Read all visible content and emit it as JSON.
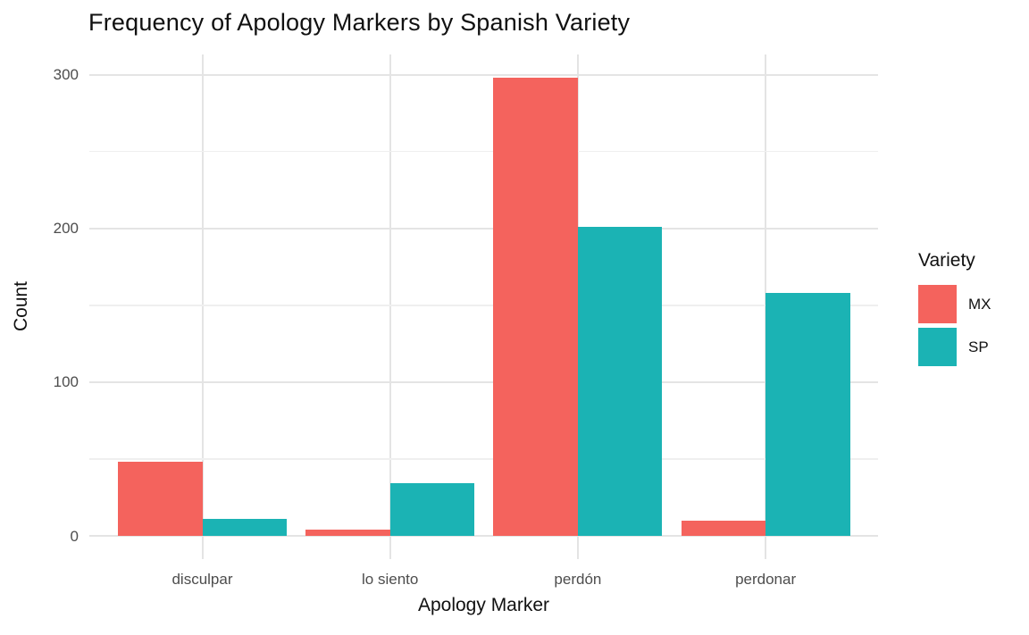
{
  "title": "Frequency of Apology Markers by Spanish Variety",
  "chart_data": {
    "type": "bar",
    "grouped": "dodged",
    "title": "Frequency of Apology Markers by Spanish Variety",
    "xlabel": "Apology Marker",
    "ylabel": "Count",
    "categories": [
      "disculpar",
      "lo siento",
      "perdón",
      "perdonar"
    ],
    "series": [
      {
        "name": "MX",
        "color": "#F4635D",
        "values": [
          48,
          4,
          298,
          10
        ]
      },
      {
        "name": "SP",
        "color": "#1BB3B4",
        "values": [
          11,
          34,
          201,
          158
        ]
      }
    ],
    "ylim": [
      0,
      300
    ],
    "yticks": [
      0,
      100,
      200,
      300
    ],
    "yticks_minor": [
      50,
      150,
      250
    ],
    "grid": "horizontal major+minor, vertical major at categories, light gray on white",
    "legend": {
      "title": "Variety",
      "position": "right"
    }
  },
  "colors": {
    "background": "#ffffff",
    "grid_major": "#e4e4e4",
    "grid_minor": "#efefef",
    "tick_text": "#4d4d4d",
    "text": "#111111"
  }
}
